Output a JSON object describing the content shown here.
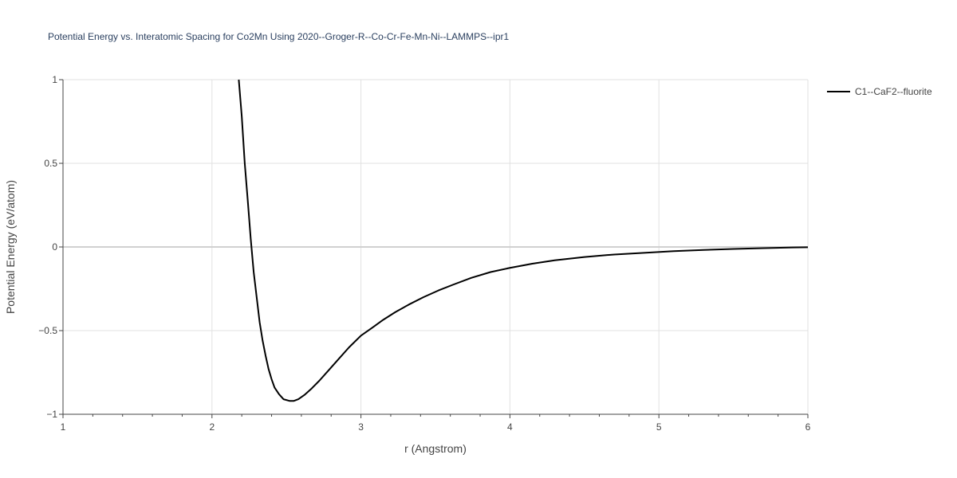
{
  "chart_data": {
    "type": "line",
    "title": "Potential Energy vs. Interatomic Spacing for Co2Mn Using 2020--Groger-R--Co-Cr-Fe-Mn-Ni--LAMMPS--ipr1",
    "xlabel": "r (Angstrom)",
    "ylabel": "Potential Energy (eV/atom)",
    "xlim": [
      1,
      6
    ],
    "ylim": [
      -1,
      1
    ],
    "x_ticks": [
      1,
      2,
      3,
      4,
      5,
      6
    ],
    "x_tick_labels": [
      "1",
      "2",
      "3",
      "4",
      "5",
      "6"
    ],
    "y_ticks": [
      -1,
      -0.5,
      0,
      0.5,
      1
    ],
    "y_tick_labels": [
      "−1",
      "−0.5",
      "0",
      "0.5",
      "1"
    ],
    "grid": true,
    "legend_position": "top-right",
    "series": [
      {
        "name": "C1--CaF2--fluorite",
        "color": "#000000",
        "x": [
          2.18,
          2.2,
          2.22,
          2.24,
          2.26,
          2.28,
          2.3,
          2.32,
          2.34,
          2.36,
          2.38,
          2.4,
          2.42,
          2.45,
          2.48,
          2.52,
          2.55,
          2.58,
          2.62,
          2.67,
          2.72,
          2.78,
          2.85,
          2.92,
          3.0,
          3.08,
          3.15,
          3.23,
          3.32,
          3.42,
          3.52,
          3.62,
          3.74,
          3.87,
          4.0,
          4.15,
          4.3,
          4.5,
          4.7,
          4.9,
          5.1,
          5.3,
          5.5,
          5.7,
          5.9,
          6.0
        ],
        "y": [
          1.0,
          0.78,
          0.5,
          0.28,
          0.05,
          -0.15,
          -0.3,
          -0.45,
          -0.56,
          -0.65,
          -0.73,
          -0.79,
          -0.84,
          -0.88,
          -0.91,
          -0.92,
          -0.92,
          -0.91,
          -0.885,
          -0.845,
          -0.8,
          -0.74,
          -0.67,
          -0.6,
          -0.53,
          -0.48,
          -0.435,
          -0.39,
          -0.345,
          -0.3,
          -0.26,
          -0.225,
          -0.185,
          -0.15,
          -0.125,
          -0.1,
          -0.08,
          -0.06,
          -0.045,
          -0.035,
          -0.025,
          -0.018,
          -0.012,
          -0.007,
          -0.003,
          -0.002
        ]
      }
    ]
  }
}
